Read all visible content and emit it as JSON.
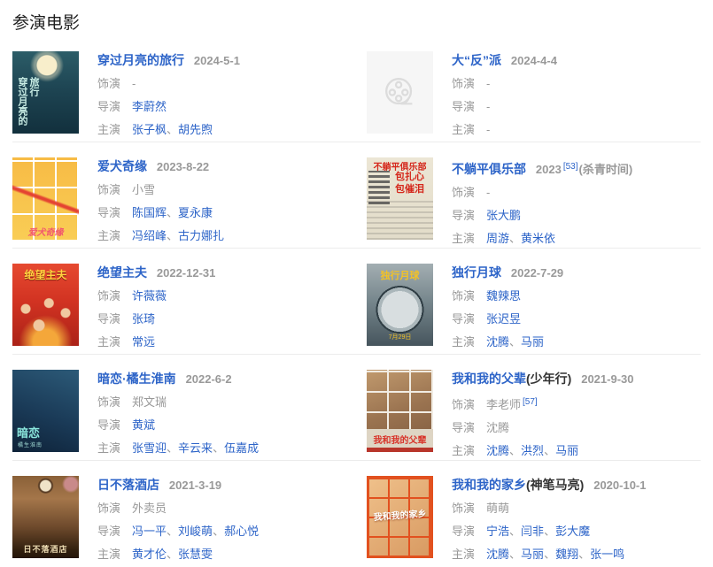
{
  "section": {
    "title": "参演电影"
  },
  "labels": {
    "role": "饰演",
    "director": "导演",
    "cast": "主演"
  },
  "separator": "、",
  "empty_value": "-",
  "colors": {
    "link": "#2d64c8",
    "muted": "#999999",
    "divider": "#ececec"
  },
  "icons": {
    "placeholder_poster": "film-reel-icon"
  },
  "movies": [
    {
      "title": "穿过月亮的旅行",
      "suffix": "",
      "date": "2024-5-1",
      "date_ref": "",
      "date_note": "",
      "role": {
        "text": "-",
        "link": false,
        "ref": ""
      },
      "directors": [
        {
          "name": "李蔚然",
          "link": true
        }
      ],
      "cast": [
        {
          "name": "张子枫",
          "link": true
        },
        {
          "name": "胡先煦",
          "link": true
        }
      ],
      "poster": {
        "style": "moon",
        "text": "穿过月亮的旅行",
        "text2": ""
      }
    },
    {
      "title": "大“反”派",
      "suffix": "",
      "date": "2024-4-4",
      "date_ref": "",
      "date_note": "",
      "role": {
        "text": "-",
        "link": false,
        "ref": ""
      },
      "directors": [],
      "cast": [],
      "poster": {
        "style": "placeholder",
        "text": "",
        "text2": ""
      }
    },
    {
      "title": "爱犬奇缘",
      "suffix": "",
      "date": "2023-8-22",
      "date_ref": "",
      "date_note": "",
      "role": {
        "text": "小雪",
        "link": false,
        "ref": ""
      },
      "directors": [
        {
          "name": "陈国辉",
          "link": true
        },
        {
          "name": "夏永康",
          "link": true
        }
      ],
      "cast": [
        {
          "name": "冯绍峰",
          "link": true
        },
        {
          "name": "古力娜扎",
          "link": true
        }
      ],
      "poster": {
        "style": "dogs",
        "text": "爱犬奇缘",
        "text2": ""
      }
    },
    {
      "title": "不躺平俱乐部",
      "suffix": "",
      "date": "2023",
      "date_ref": "[53]",
      "date_note": "(杀青时间)",
      "role": {
        "text": "-",
        "link": false,
        "ref": ""
      },
      "directors": [
        {
          "name": "张大鹏",
          "link": true
        }
      ],
      "cast": [
        {
          "name": "周游",
          "link": true
        },
        {
          "name": "黄米依",
          "link": true
        }
      ],
      "poster": {
        "style": "news",
        "text": "不躺平俱乐部",
        "text2": "包扎心\n包催泪"
      }
    },
    {
      "title": "绝望主夫",
      "suffix": "",
      "date": "2022-12-31",
      "date_ref": "",
      "date_note": "",
      "role": {
        "text": "许薇薇",
        "link": true,
        "ref": ""
      },
      "directors": [
        {
          "name": "张琦",
          "link": true
        }
      ],
      "cast": [
        {
          "name": "常远",
          "link": true
        }
      ],
      "poster": {
        "style": "redfam",
        "text": "绝望主夫",
        "text2": ""
      }
    },
    {
      "title": "独行月球",
      "suffix": "",
      "date": "2022-7-29",
      "date_ref": "",
      "date_note": "",
      "role": {
        "text": "魏辣思",
        "link": true,
        "ref": ""
      },
      "directors": [
        {
          "name": "张迟昱",
          "link": true
        }
      ],
      "cast": [
        {
          "name": "沈腾",
          "link": true
        },
        {
          "name": "马丽",
          "link": true
        }
      ],
      "poster": {
        "style": "moonman",
        "text": "独行月球",
        "text2": "7月29日"
      }
    },
    {
      "title": "暗恋·橘生淮南",
      "suffix": "",
      "date": "2022-6-2",
      "date_ref": "",
      "date_note": "",
      "role": {
        "text": "郑文瑞",
        "link": false,
        "ref": ""
      },
      "directors": [
        {
          "name": "黄斌",
          "link": true
        }
      ],
      "cast": [
        {
          "name": "张雪迎",
          "link": true
        },
        {
          "name": "辛云来",
          "link": true
        },
        {
          "name": "伍嘉成",
          "link": true
        }
      ],
      "poster": {
        "style": "bluelove",
        "text": "暗恋",
        "text2": "橘生淮南"
      }
    },
    {
      "title": "我和我的父辈",
      "suffix": "(少年行)",
      "date": "2021-9-30",
      "date_ref": "",
      "date_note": "",
      "role": {
        "text": "李老师",
        "link": false,
        "ref": "[57]"
      },
      "directors": [
        {
          "name": "沈腾",
          "link": false
        }
      ],
      "cast": [
        {
          "name": "沈腾",
          "link": true
        },
        {
          "name": "洪烈",
          "link": true
        },
        {
          "name": "马丽",
          "link": true
        }
      ],
      "poster": {
        "style": "parents",
        "text": "我和我的父辈",
        "text2": ""
      }
    },
    {
      "title": "日不落酒店",
      "suffix": "",
      "date": "2021-3-19",
      "date_ref": "",
      "date_note": "",
      "role": {
        "text": "外卖员",
        "link": false,
        "ref": ""
      },
      "directors": [
        {
          "name": "冯一平",
          "link": true
        },
        {
          "name": "刘峻萌",
          "link": true
        },
        {
          "name": "郝心悦",
          "link": true
        }
      ],
      "cast": [
        {
          "name": "黄才伦",
          "link": true
        },
        {
          "name": "张慧雯",
          "link": true
        }
      ],
      "poster": {
        "style": "hotel",
        "text": "日不落酒店",
        "text2": ""
      }
    },
    {
      "title": "我和我的家乡",
      "suffix": "(神笔马亮)",
      "date": "2020-10-1",
      "date_ref": "",
      "date_note": "",
      "role": {
        "text": "萌萌",
        "link": false,
        "ref": ""
      },
      "directors": [
        {
          "name": "宁浩",
          "link": true
        },
        {
          "name": "闫非",
          "link": true
        },
        {
          "name": "彭大魔",
          "link": true
        }
      ],
      "cast": [
        {
          "name": "沈腾",
          "link": true
        },
        {
          "name": "马丽",
          "link": true
        },
        {
          "name": "魏翔",
          "link": true
        },
        {
          "name": "张一鸣",
          "link": true
        }
      ],
      "poster": {
        "style": "hometown",
        "text": "我和我的家乡",
        "text2": ""
      }
    }
  ]
}
